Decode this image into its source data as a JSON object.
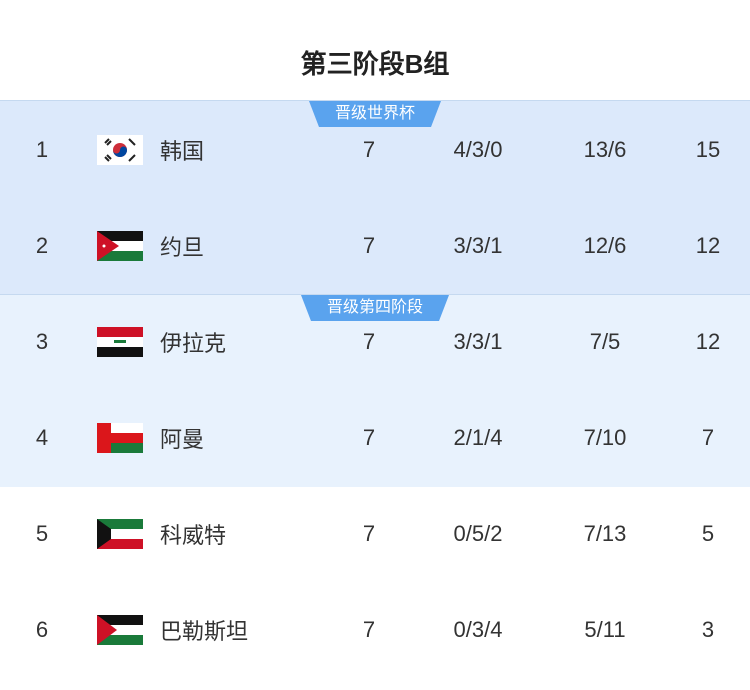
{
  "title": "第三阶段B组",
  "zones": [
    {
      "label": "晋级世界杯",
      "color": "#dce9fb"
    },
    {
      "label": "晋级第四阶段",
      "color": "#e8f2fd"
    }
  ],
  "badge_color": "#5aa3ee",
  "rows": [
    {
      "rank": "1",
      "flag": "korea",
      "team": "韩国",
      "played": "7",
      "wdl": "4/3/0",
      "goals": "13/6",
      "points": "15"
    },
    {
      "rank": "2",
      "flag": "jordan",
      "team": "约旦",
      "played": "7",
      "wdl": "3/3/1",
      "goals": "12/6",
      "points": "12"
    },
    {
      "rank": "3",
      "flag": "iraq",
      "team": "伊拉克",
      "played": "7",
      "wdl": "3/3/1",
      "goals": "7/5",
      "points": "12"
    },
    {
      "rank": "4",
      "flag": "oman",
      "team": "阿曼",
      "played": "7",
      "wdl": "2/1/4",
      "goals": "7/10",
      "points": "7"
    },
    {
      "rank": "5",
      "flag": "kuwait",
      "team": "科威特",
      "played": "7",
      "wdl": "0/5/2",
      "goals": "7/13",
      "points": "5"
    },
    {
      "rank": "6",
      "flag": "palestine",
      "team": "巴勒斯坦",
      "played": "7",
      "wdl": "0/3/4",
      "goals": "5/11",
      "points": "3"
    }
  ]
}
